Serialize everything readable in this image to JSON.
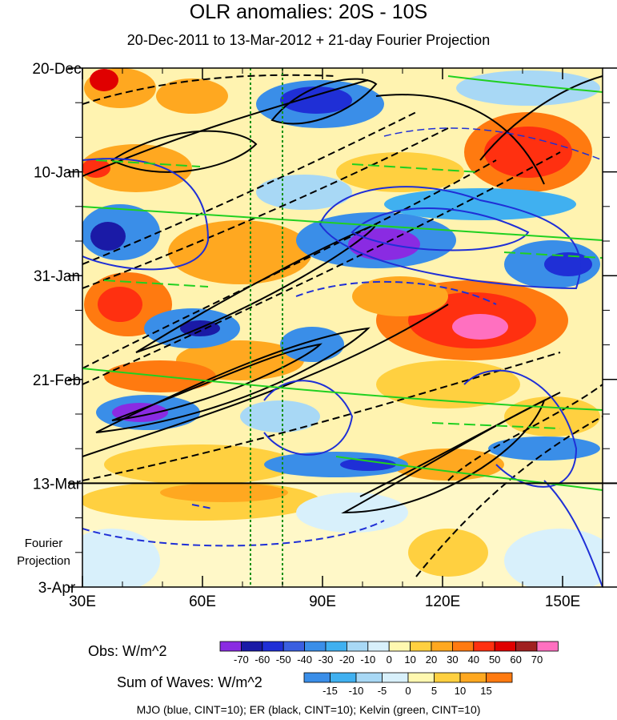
{
  "chart_data": {
    "type": "heatmap",
    "title": "OLR anomalies: 20S - 10S",
    "subtitle": "20-Dec-2011 to 13-Mar-2012 + 21-day Fourier Projection",
    "x_ticks": [
      "30E",
      "60E",
      "90E",
      "120E",
      "150E"
    ],
    "x_tick_values": [
      30,
      60,
      90,
      120,
      150
    ],
    "xlim": [
      30,
      160
    ],
    "y_ticks": [
      "20-Dec",
      "10-Jan",
      "31-Jan",
      "21-Feb",
      "13-Mar",
      "3-Apr"
    ],
    "y_tick_days": [
      0,
      21,
      42,
      63,
      84,
      105
    ],
    "projection_start_label": "13-Mar",
    "projection_label": [
      "Fourier",
      "Projection"
    ],
    "reference_lines_lon": [
      72,
      80
    ],
    "obs_colorbar": {
      "label": "Obs: W/m^2",
      "levels": [
        "-70",
        "-60",
        "-50",
        "-40",
        "-30",
        "-20",
        "-10",
        "0",
        "10",
        "20",
        "30",
        "40",
        "50",
        "60",
        "70"
      ],
      "colors": [
        "#8a2be2",
        "#1a1aa6",
        "#1f2fd6",
        "#3a5fe0",
        "#3a8ee8",
        "#40b0f0",
        "#a8d8f5",
        "#d8f0fb",
        "#fff8b0",
        "#ffd040",
        "#ffa820",
        "#ff7a10",
        "#ff3010",
        "#e00000",
        "#a02020",
        "#ff70c0"
      ]
    },
    "waves_colorbar": {
      "label": "Sum of Waves: W/m^2",
      "levels": [
        "-15",
        "-10",
        "-5",
        "0",
        "5",
        "10",
        "15"
      ],
      "colors": [
        "#3a8ee8",
        "#40b0f0",
        "#a8d8f5",
        "#d8f0fb",
        "#fff8b0",
        "#ffd040",
        "#ffa820",
        "#ff7a10"
      ]
    },
    "footer": "MJO (blue, CINT=10); ER (black, CINT=10); Kelvin (green, CINT=10)"
  }
}
